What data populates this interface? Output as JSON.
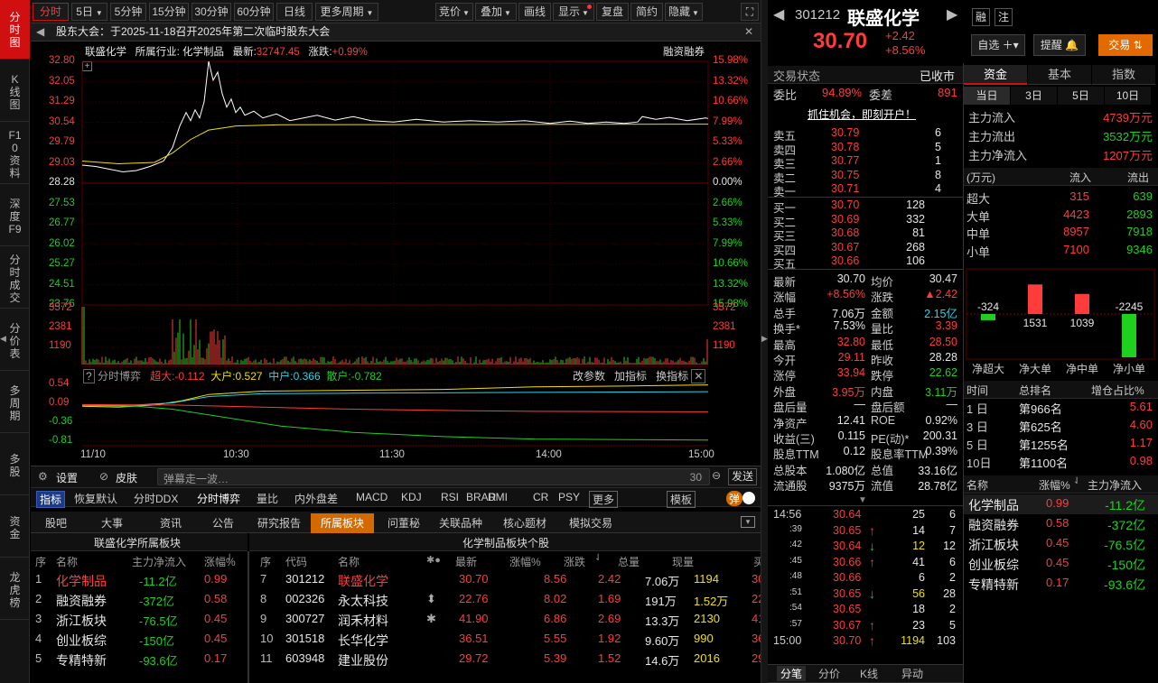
{
  "left_tabs": [
    "分时图",
    "K线图",
    "F10资料",
    "深度F9",
    "分时成交",
    "分价表",
    "多周期",
    "多股",
    "资金",
    "龙虎榜"
  ],
  "toolbar": {
    "periods": [
      "分时",
      "5日",
      "5分钟",
      "15分钟",
      "30分钟",
      "60分钟",
      "日线",
      "更多周期"
    ],
    "right": [
      "竞价",
      "叠加",
      "画线",
      "显示",
      "复盘",
      "简约",
      "隐藏"
    ]
  },
  "notice": "股东大会：于2025-11-18召开2025年第二次临时股东大会",
  "chart_head": {
    "name": "联盛化学",
    "industry_lbl": "所属行业:",
    "industry": "化学制品",
    "latest_lbl": "最新:",
    "latest": "32747.45",
    "chg_lbl": "涨跌:",
    "chg": "+0.99%",
    "tag": "融资融券"
  },
  "price_ticks": [
    "32.80",
    "32.05",
    "31.29",
    "30.54",
    "29.79",
    "29.03",
    "28.28",
    "27.53",
    "26.77",
    "26.02",
    "25.27",
    "24.51",
    "23.76"
  ],
  "pct_ticks": [
    "15.98%",
    "13.32%",
    "10.66%",
    "7.99%",
    "5.33%",
    "2.66%",
    "0.00%",
    "2.66%",
    "5.33%",
    "7.99%",
    "10.66%",
    "13.32%",
    "15.98%"
  ],
  "vol_ticks": [
    "3572",
    "2381",
    "1190"
  ],
  "ind_head": {
    "title": "分时博弈",
    "big": "超大:-0.112",
    "large": "大户:0.527",
    "mid": "中户:0.366",
    "small": "散户:-0.782",
    "btns": [
      "改参数",
      "加指标",
      "换指标"
    ]
  },
  "ind_ticks": [
    "0.54",
    "0.09",
    "-0.36",
    "-0.81"
  ],
  "time_ticks": [
    "11/10",
    "10:30",
    "11:30",
    "14:00",
    "15:00"
  ],
  "tools": {
    "settings": "设置",
    "skin": "皮肤",
    "danmu": "弹幕走一波…",
    "count": "30",
    "send": "发送"
  },
  "indicators": [
    "指标",
    "恢复默认",
    "分时DDX",
    "分时博弈",
    "量比",
    "内外盘差",
    "MACD",
    "KDJ",
    "RSI",
    "BRAR",
    "DMI",
    "CR",
    "PSY",
    "更多",
    "模板",
    "弹"
  ],
  "bottom_tabs": [
    "股吧",
    "大事",
    "资讯",
    "公告",
    "研究报告",
    "所属板块",
    "问董秘",
    "关联品种",
    "核心题材",
    "模拟交易"
  ],
  "sector": {
    "left_title": "联盛化学所属板块",
    "right_title": "化学制品板块个股",
    "left_cols": [
      "序",
      "名称",
      "主力净流入",
      "涨幅%"
    ],
    "left_rows": [
      [
        "1",
        "化学制品",
        "-11.2亿",
        "0.99"
      ],
      [
        "2",
        "融资融券",
        "-372亿",
        "0.58"
      ],
      [
        "3",
        "浙江板块",
        "-76.5亿",
        "0.45"
      ],
      [
        "4",
        "创业板综",
        "-150亿",
        "0.45"
      ],
      [
        "5",
        "专精特新",
        "-93.6亿",
        "0.17"
      ]
    ],
    "right_cols": [
      "序",
      "代码",
      "名称",
      "最新",
      "涨幅%",
      "涨跌",
      "总量",
      "现量",
      "买"
    ],
    "right_rows": [
      [
        "7",
        "301212",
        "联盛化学",
        "",
        "30.70",
        "8.56",
        "2.42",
        "7.06万",
        "1194",
        "30"
      ],
      [
        "8",
        "002326",
        "永太科技",
        "⬍",
        "22.76",
        "8.02",
        "1.69",
        "191万",
        "1.52万",
        "22"
      ],
      [
        "9",
        "300727",
        "润禾材料",
        "✱",
        "41.90",
        "6.86",
        "2.69",
        "13.3万",
        "2130",
        "41"
      ],
      [
        "10",
        "301518",
        "长华化学",
        "",
        "36.51",
        "5.55",
        "1.92",
        "9.60万",
        "990",
        "36"
      ],
      [
        "11",
        "603948",
        "建业股份",
        "",
        "29.72",
        "5.39",
        "1.52",
        "14.6万",
        "2016",
        "29"
      ]
    ]
  },
  "quote": {
    "code": "301212",
    "name": "联盛化学",
    "price": "30.70",
    "chg": "+2.42",
    "pct": "+8.56%",
    "rong": "融",
    "zhu": "注",
    "zixuan": "自选",
    "tixing": "提醒",
    "jiaoyi": "交易"
  },
  "status": {
    "label": "交易状态",
    "value": "已收市",
    "wb_lbl": "委比",
    "wb": "94.89%",
    "wc_lbl": "委差",
    "wc": "891",
    "ad": "抓住机会，即刻开户！"
  },
  "asks": [
    [
      "卖五",
      "30.79",
      "6"
    ],
    [
      "卖四",
      "30.78",
      "5"
    ],
    [
      "卖三",
      "30.77",
      "1"
    ],
    [
      "卖二",
      "30.75",
      "8"
    ],
    [
      "卖一",
      "30.71",
      "4"
    ]
  ],
  "bids": [
    [
      "买一",
      "30.70",
      "128"
    ],
    [
      "买二",
      "30.69",
      "332"
    ],
    [
      "买三",
      "30.68",
      "81"
    ],
    [
      "买四",
      "30.67",
      "268"
    ],
    [
      "买五",
      "30.66",
      "106"
    ]
  ],
  "stats": [
    [
      "最新",
      "30.70",
      "均价",
      "30.47"
    ],
    [
      "涨幅",
      "+8.56%",
      "涨跌",
      "▲2.42"
    ],
    [
      "总手",
      "7.06万",
      "金额",
      "2.15亿"
    ],
    [
      "换手*",
      "7.53%",
      "量比",
      "3.39"
    ],
    [
      "最高",
      "32.80",
      "最低",
      "28.50"
    ],
    [
      "今开",
      "29.11",
      "昨收",
      "28.28"
    ],
    [
      "涨停",
      "33.94",
      "跌停",
      "22.62"
    ],
    [
      "外盘",
      "3.95万",
      "内盘",
      "3.11万"
    ],
    [
      "盘后量",
      "—",
      "盘后额",
      "—"
    ],
    [
      "净资产",
      "12.41",
      "ROE",
      "0.92%"
    ],
    [
      "收益(三)",
      "0.115",
      "PE(动)*",
      "200.31"
    ],
    [
      "股息TTM",
      "0.12",
      "股息率TTM",
      "0.39%"
    ],
    [
      "总股本",
      "1.080亿",
      "总值",
      "33.16亿"
    ],
    [
      "流通股",
      "9375万",
      "流值",
      "28.78亿"
    ]
  ],
  "ticks": [
    [
      "14:56",
      "30.64",
      "",
      "25",
      "6"
    ],
    [
      ":39",
      "30.65",
      "↑",
      "14",
      "7"
    ],
    [
      ":42",
      "30.64",
      "↓",
      "12",
      "12"
    ],
    [
      ":45",
      "30.66",
      "↑",
      "41",
      "6"
    ],
    [
      ":48",
      "30.66",
      "",
      "6",
      "2"
    ],
    [
      ":51",
      "30.65",
      "↓",
      "56",
      "28"
    ],
    [
      ":54",
      "30.65",
      "",
      "18",
      "2"
    ],
    [
      ":57",
      "30.67",
      "↑",
      "23",
      "5"
    ],
    [
      "15:00",
      "30.70",
      "↑",
      "1194",
      "103"
    ]
  ],
  "tick_tabs": [
    "分笔",
    "分价",
    "K线",
    "异动"
  ],
  "fund": {
    "tabs": [
      "资金",
      "基本",
      "指数"
    ],
    "sub": [
      "当日",
      "3日",
      "5日",
      "10日"
    ],
    "main": [
      [
        "主力流入",
        "4739万元"
      ],
      [
        "主力流出",
        "3532万元"
      ],
      [
        "主力净流入",
        "1207万元"
      ]
    ],
    "head": [
      "(万元)",
      "流入",
      "流出"
    ],
    "rows": [
      [
        "超大",
        "315",
        "639"
      ],
      [
        "大单",
        "4423",
        "2893"
      ],
      [
        "中单",
        "8957",
        "7918"
      ],
      [
        "小单",
        "7100",
        "9346"
      ]
    ],
    "bars": {
      "labels": [
        "净超大",
        "净大单",
        "净中单",
        "净小单"
      ],
      "values": [
        -324,
        1531,
        1039,
        -2245
      ]
    },
    "rank_head": [
      "时间",
      "总排名",
      "增仓占比%"
    ],
    "rank": [
      [
        "1 日",
        "第966名",
        "5.61"
      ],
      [
        "3 日",
        "第625名",
        "4.60"
      ],
      [
        "5 日",
        "第1255名",
        "1.17"
      ],
      [
        "10日",
        "第1100名",
        "0.98"
      ]
    ],
    "blk_head": [
      "名称",
      "涨幅%",
      "主力净流入"
    ],
    "blocks": [
      [
        "化学制品",
        "0.99",
        "-11.2亿"
      ],
      [
        "融资融券",
        "0.58",
        "-372亿"
      ],
      [
        "浙江板块",
        "0.45",
        "-76.5亿"
      ],
      [
        "创业板综",
        "0.45",
        "-150亿"
      ],
      [
        "专精特新",
        "0.17",
        "-93.6亿"
      ]
    ]
  }
}
